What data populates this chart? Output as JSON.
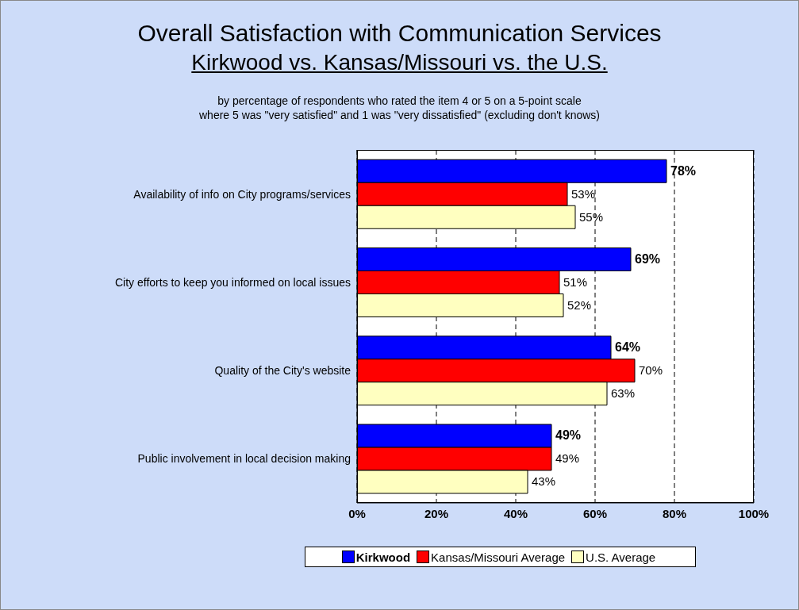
{
  "chart_data": {
    "type": "bar",
    "orientation": "horizontal",
    "title": "Overall Satisfaction with Communication Services",
    "subtitle": "Kirkwood vs. Kansas/Missouri  vs. the U.S.",
    "annotations": [
      "by percentage of respondents who rated the item 4 or 5 on a 5-point scale",
      "where 5 was \"very satisfied\" and 1 was \"very dissatisfied\" (excluding don't knows)"
    ],
    "categories": [
      "Availability of info on City programs/services",
      "City efforts to keep you informed on local issues",
      "Quality of the City's website",
      "Public involvement in local decision making"
    ],
    "series": [
      {
        "name": "Kirkwood",
        "color": "#0000ff",
        "values": [
          78,
          69,
          64,
          49
        ],
        "value_labels": [
          "78%",
          "69%",
          "64%",
          "49%"
        ]
      },
      {
        "name": "Kansas/Missouri Average",
        "color": "#ff0000",
        "values": [
          53,
          51,
          70,
          49
        ],
        "value_labels": [
          "53%",
          "51%",
          "70%",
          "49%"
        ]
      },
      {
        "name": "U.S. Average",
        "color": "#ffffc0",
        "values": [
          55,
          52,
          63,
          43
        ],
        "value_labels": [
          "55%",
          "52%",
          "63%",
          "43%"
        ]
      }
    ],
    "xlim": [
      0,
      100
    ],
    "xticks": [
      {
        "value": 0,
        "label": "0%"
      },
      {
        "value": 20,
        "label": "20%"
      },
      {
        "value": 40,
        "label": "40%"
      },
      {
        "value": 60,
        "label": "60%"
      },
      {
        "value": 80,
        "label": "80%"
      },
      {
        "value": 100,
        "label": "100%"
      }
    ],
    "grid": "x",
    "legend": "bottom"
  }
}
